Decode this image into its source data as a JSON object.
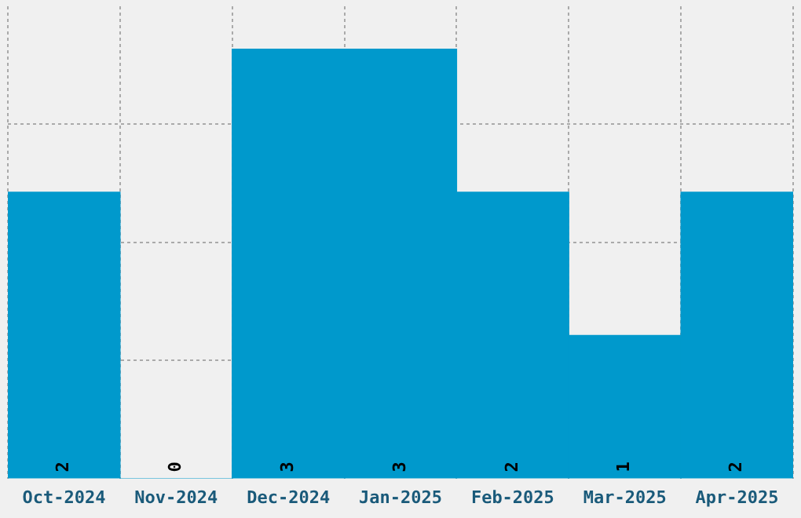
{
  "chart_data": {
    "type": "bar",
    "categories": [
      "Oct-2024",
      "Nov-2024",
      "Dec-2024",
      "Jan-2025",
      "Feb-2025",
      "Mar-2025",
      "Apr-2025"
    ],
    "values": [
      2,
      0,
      3,
      3,
      2,
      1,
      2
    ],
    "color": "#0099cc",
    "ylim": [
      0,
      3.3
    ],
    "yticks": [
      {
        "value": 0.825,
        "label": null
      },
      {
        "value": 1.65,
        "label": null
      },
      {
        "value": 2.475,
        "label": null
      }
    ],
    "tick_labels": "x",
    "grid": true,
    "data_labels": true,
    "legend": false
  }
}
